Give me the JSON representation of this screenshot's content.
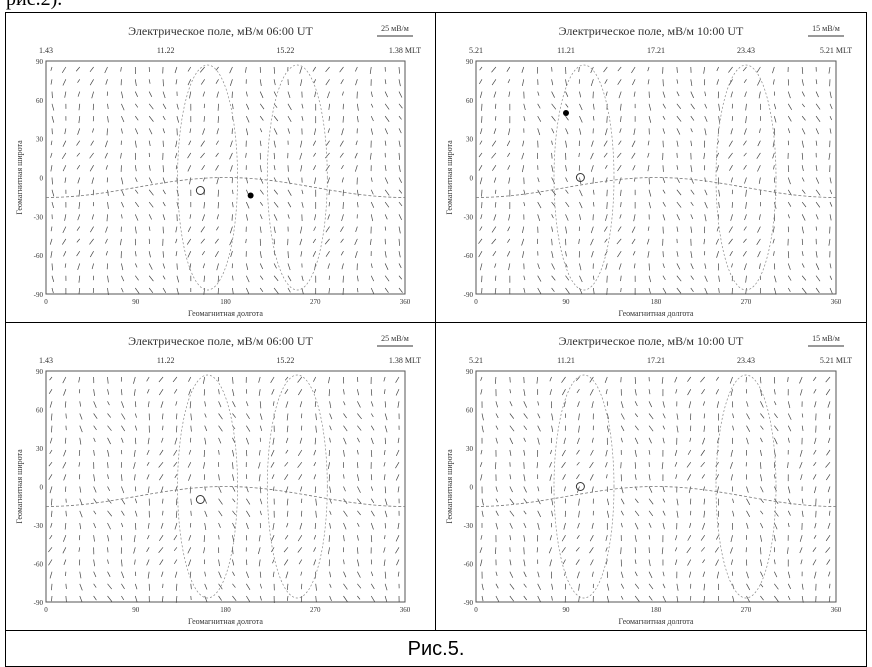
{
  "header": {
    "text": "рис.2)."
  },
  "panels": [
    {
      "title": "Электрическое поле, мВ/м  06:00 UT",
      "scale": "25 мВ/м",
      "top_labels": [
        "1.43",
        "11.22",
        "15.22",
        "1.38 MLT"
      ],
      "x_ticks": [
        "0",
        "90",
        "180",
        "270",
        "360"
      ],
      "y_ticks": [
        "90",
        "60",
        "30",
        "0",
        "-30",
        "-60",
        "-90"
      ],
      "x_label": "Геомагнитная долгота",
      "y_label": "Геомагнитная широта"
    },
    {
      "title": "Электрическое поле, мВ/м  10:00 UT",
      "scale": "15 мВ/м",
      "top_labels": [
        "5.21",
        "11.21",
        "17.21",
        "23.43",
        "5.21 MLT"
      ],
      "x_ticks": [
        "0",
        "90",
        "180",
        "270",
        "360"
      ],
      "y_ticks": [
        "90",
        "60",
        "30",
        "0",
        "-30",
        "-60",
        "-90"
      ],
      "x_label": "Геомагнитная долгота",
      "y_label": "Геомагнитная широта"
    },
    {
      "title": "Электрическое поле, мВ/м  06:00 UT",
      "scale": "25 мВ/м",
      "top_labels": [
        "1.43",
        "11.22",
        "15.22",
        "1.38 MLT"
      ],
      "x_ticks": [
        "0",
        "90",
        "180",
        "270",
        "360"
      ],
      "y_ticks": [
        "90",
        "60",
        "30",
        "0",
        "-30",
        "-60",
        "-90"
      ],
      "x_label": "Геомагнитная долгота",
      "y_label": "Геомагнитная широта"
    },
    {
      "title": "Электрическое поле, мВ/м  10:00 UT",
      "scale": "15 мВ/м",
      "top_labels": [
        "5.21",
        "11.21",
        "17.21",
        "23.43",
        "5.21 MLT"
      ],
      "x_ticks": [
        "0",
        "90",
        "180",
        "270",
        "360"
      ],
      "y_ticks": [
        "90",
        "60",
        "30",
        "0",
        "-30",
        "-60",
        "-90"
      ],
      "x_label": "Геомагнитная долгота",
      "y_label": "Геомагнитная широта"
    }
  ],
  "caption": "Рис.5."
}
